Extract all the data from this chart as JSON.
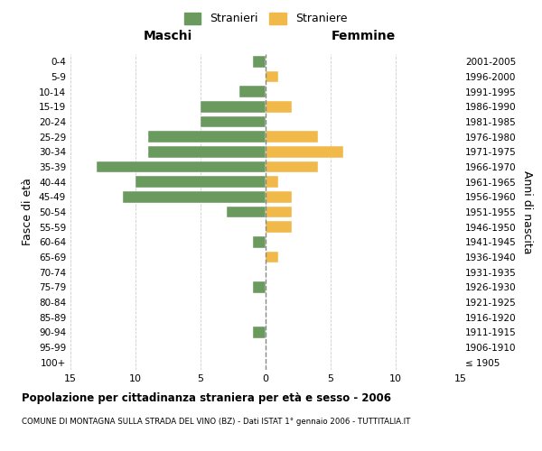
{
  "age_groups": [
    "100+",
    "95-99",
    "90-94",
    "85-89",
    "80-84",
    "75-79",
    "70-74",
    "65-69",
    "60-64",
    "55-59",
    "50-54",
    "45-49",
    "40-44",
    "35-39",
    "30-34",
    "25-29",
    "20-24",
    "15-19",
    "10-14",
    "5-9",
    "0-4"
  ],
  "birth_years": [
    "≤ 1905",
    "1906-1910",
    "1911-1915",
    "1916-1920",
    "1921-1925",
    "1926-1930",
    "1931-1935",
    "1936-1940",
    "1941-1945",
    "1946-1950",
    "1951-1955",
    "1956-1960",
    "1961-1965",
    "1966-1970",
    "1971-1975",
    "1976-1980",
    "1981-1985",
    "1986-1990",
    "1991-1995",
    "1996-2000",
    "2001-2005"
  ],
  "males": [
    0,
    0,
    1,
    0,
    0,
    1,
    0,
    0,
    1,
    0,
    3,
    11,
    10,
    13,
    9,
    9,
    5,
    5,
    2,
    0,
    1
  ],
  "females": [
    0,
    0,
    0,
    0,
    0,
    0,
    0,
    1,
    0,
    2,
    2,
    2,
    1,
    4,
    6,
    4,
    0,
    2,
    0,
    1,
    0
  ],
  "male_color": "#6a9a5e",
  "female_color": "#f0b94a",
  "background_color": "#ffffff",
  "grid_color": "#cccccc",
  "title": "Popolazione per cittadinanza straniera per età e sesso - 2006",
  "subtitle": "COMUNE DI MONTAGNA SULLA STRADA DEL VINO (BZ) - Dati ISTAT 1° gennaio 2006 - TUTTITALIA.IT",
  "ylabel_left": "Fasce di età",
  "ylabel_right": "Anni di nascita",
  "header_left": "Maschi",
  "header_right": "Femmine",
  "legend_male": "Stranieri",
  "legend_female": "Straniere",
  "xlim": 15
}
